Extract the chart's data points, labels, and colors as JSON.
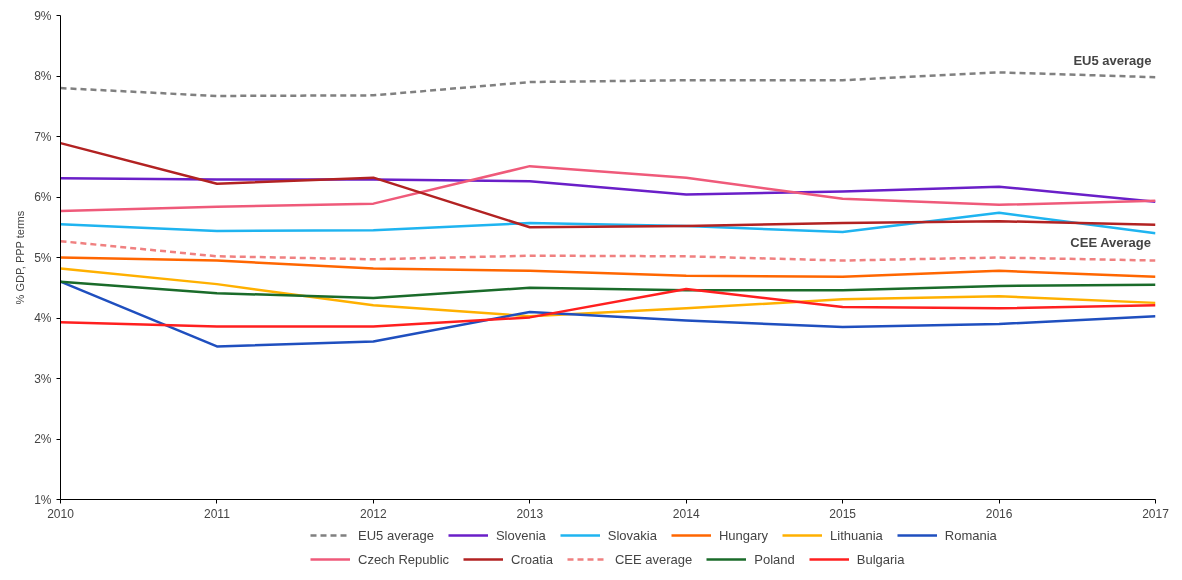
{
  "chart_data": {
    "type": "line",
    "ylabel": "% GDP, PPP terms",
    "x": [
      2010,
      2011,
      2012,
      2013,
      2014,
      2015,
      2016,
      2017
    ],
    "xlim": [
      2010,
      2017
    ],
    "xticks": [
      2010,
      2011,
      2012,
      2013,
      2014,
      2015,
      2016,
      2017
    ],
    "ylim": [
      1,
      9
    ],
    "yticks": [
      {
        "value": 1,
        "label": "1%"
      },
      {
        "value": 2,
        "label": "2%"
      },
      {
        "value": 3,
        "label": "3%"
      },
      {
        "value": 4,
        "label": "4%"
      },
      {
        "value": 5,
        "label": "5%"
      },
      {
        "value": 6,
        "label": "6%"
      },
      {
        "value": 7,
        "label": "7%"
      },
      {
        "value": 8,
        "label": "8%"
      },
      {
        "value": 9,
        "label": "9%"
      }
    ],
    "grid": false,
    "legend": "bottom",
    "marker": "none",
    "annotations": [
      "EU5 average",
      "CEE Average"
    ],
    "series": [
      {
        "name": "EU5 average",
        "color": "#808080",
        "line_style": "dashed",
        "values": [
          7.8,
          7.67,
          7.68,
          7.9,
          7.93,
          7.93,
          8.06,
          7.98
        ]
      },
      {
        "name": "Slovenia",
        "color": "#6a1fc8",
        "values": [
          6.31,
          6.29,
          6.29,
          6.26,
          6.04,
          6.09,
          6.17,
          5.92
        ]
      },
      {
        "name": "Slovakia",
        "color": "#1fb4f0",
        "values": [
          5.55,
          5.44,
          5.45,
          5.57,
          5.52,
          5.42,
          5.74,
          5.4
        ]
      },
      {
        "name": "Hungary",
        "color": "#ff6600",
        "values": [
          5.0,
          4.95,
          4.82,
          4.78,
          4.7,
          4.68,
          4.78,
          4.68
        ]
      },
      {
        "name": "Lithuania",
        "color": "#ffb000",
        "values": [
          4.82,
          4.56,
          4.21,
          4.03,
          4.16,
          4.31,
          4.36,
          4.25
        ]
      },
      {
        "name": "Romania",
        "color": "#1f4fbf",
        "values": [
          4.6,
          3.53,
          3.61,
          4.1,
          3.96,
          3.85,
          3.9,
          4.03
        ]
      },
      {
        "name": "Czech Republic",
        "color": "#ef5a7a",
        "values": [
          5.77,
          5.84,
          5.89,
          6.51,
          6.32,
          5.97,
          5.87,
          5.94
        ]
      },
      {
        "name": "Croatia",
        "color": "#b22222",
        "values": [
          6.89,
          6.22,
          6.32,
          5.5,
          5.52,
          5.57,
          5.6,
          5.54
        ]
      },
      {
        "name": "CEE average",
        "color": "#f08080",
        "line_style": "dashed",
        "values": [
          5.27,
          5.02,
          4.97,
          5.03,
          5.02,
          4.95,
          5.0,
          4.95
        ]
      },
      {
        "name": "Poland",
        "color": "#1a6b2a",
        "values": [
          4.6,
          4.41,
          4.33,
          4.5,
          4.46,
          4.46,
          4.53,
          4.55
        ]
      },
      {
        "name": "Bulgaria",
        "color": "#ff1f1f",
        "values": [
          3.93,
          3.86,
          3.86,
          4.01,
          4.48,
          4.18,
          4.16,
          4.21
        ]
      }
    ]
  }
}
